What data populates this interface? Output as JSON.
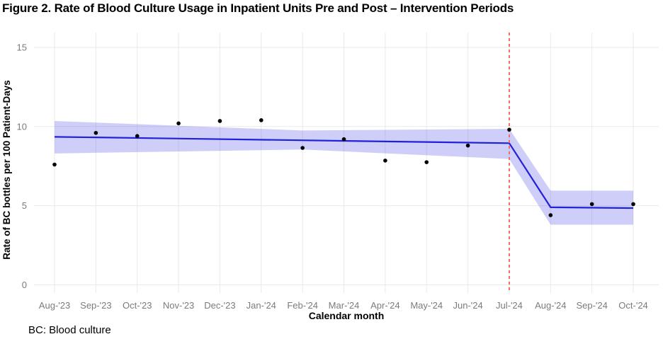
{
  "title": "Figure 2. Rate of Blood Culture Usage in Inpatient Units Pre and Post – Intervention Periods",
  "footnote": "BC: Blood culture",
  "chart_data": {
    "type": "scatter",
    "title": "Figure 2. Rate of Blood Culture Usage in Inpatient Units Pre and Post – Intervention Periods",
    "xlabel": "Calendar month",
    "ylabel": "Rate of BC bottles per 100 Patient-Days",
    "ylim": [
      0,
      15
    ],
    "yticks": [
      0,
      5,
      10,
      15
    ],
    "grid": "on",
    "legend": "none",
    "categories": [
      "Aug-'23",
      "Sep-'23",
      "Oct-'23",
      "Nov-'23",
      "Dec-'23",
      "Jan-'24",
      "Feb-'24",
      "Mar-'24",
      "Apr-'24",
      "May-'24",
      "Jun-'24",
      "Jul-'24",
      "Aug-'24",
      "Sep-'24",
      "Oct-'24"
    ],
    "observed_points": [
      7.6,
      9.6,
      9.4,
      10.2,
      10.35,
      10.4,
      8.65,
      9.2,
      7.85,
      7.75,
      8.8,
      9.8,
      4.4,
      5.1,
      5.1
    ],
    "fitted_line": [
      {
        "month": "Aug-'23",
        "value": 9.35
      },
      {
        "month": "Jul-'24",
        "value": 8.95
      },
      {
        "month": "Aug-'24",
        "value": 4.9
      },
      {
        "month": "Oct-'24",
        "value": 4.85
      }
    ],
    "ci_band": [
      {
        "month": "Aug-'23",
        "lower": 8.3,
        "upper": 10.35
      },
      {
        "month": "Feb-'24",
        "lower": 8.55,
        "upper": 9.75
      },
      {
        "month": "Jul-'24",
        "lower": 7.95,
        "upper": 9.85
      },
      {
        "month": "Aug-'24",
        "lower": 3.8,
        "upper": 5.95
      },
      {
        "month": "Oct-'24",
        "lower": 3.8,
        "upper": 5.95
      }
    ],
    "intervention": {
      "month": "Jul-'24",
      "line_style": "dashed"
    },
    "colors": {
      "fit_line": "#2121d8",
      "ci_band": "rgba(75,75,228,0.27)",
      "intervention_line": "#f2695e",
      "points": "#000000",
      "grid": "#eaeaea",
      "tick_text": "#7b7b7b",
      "axis_text": "#000000"
    }
  }
}
